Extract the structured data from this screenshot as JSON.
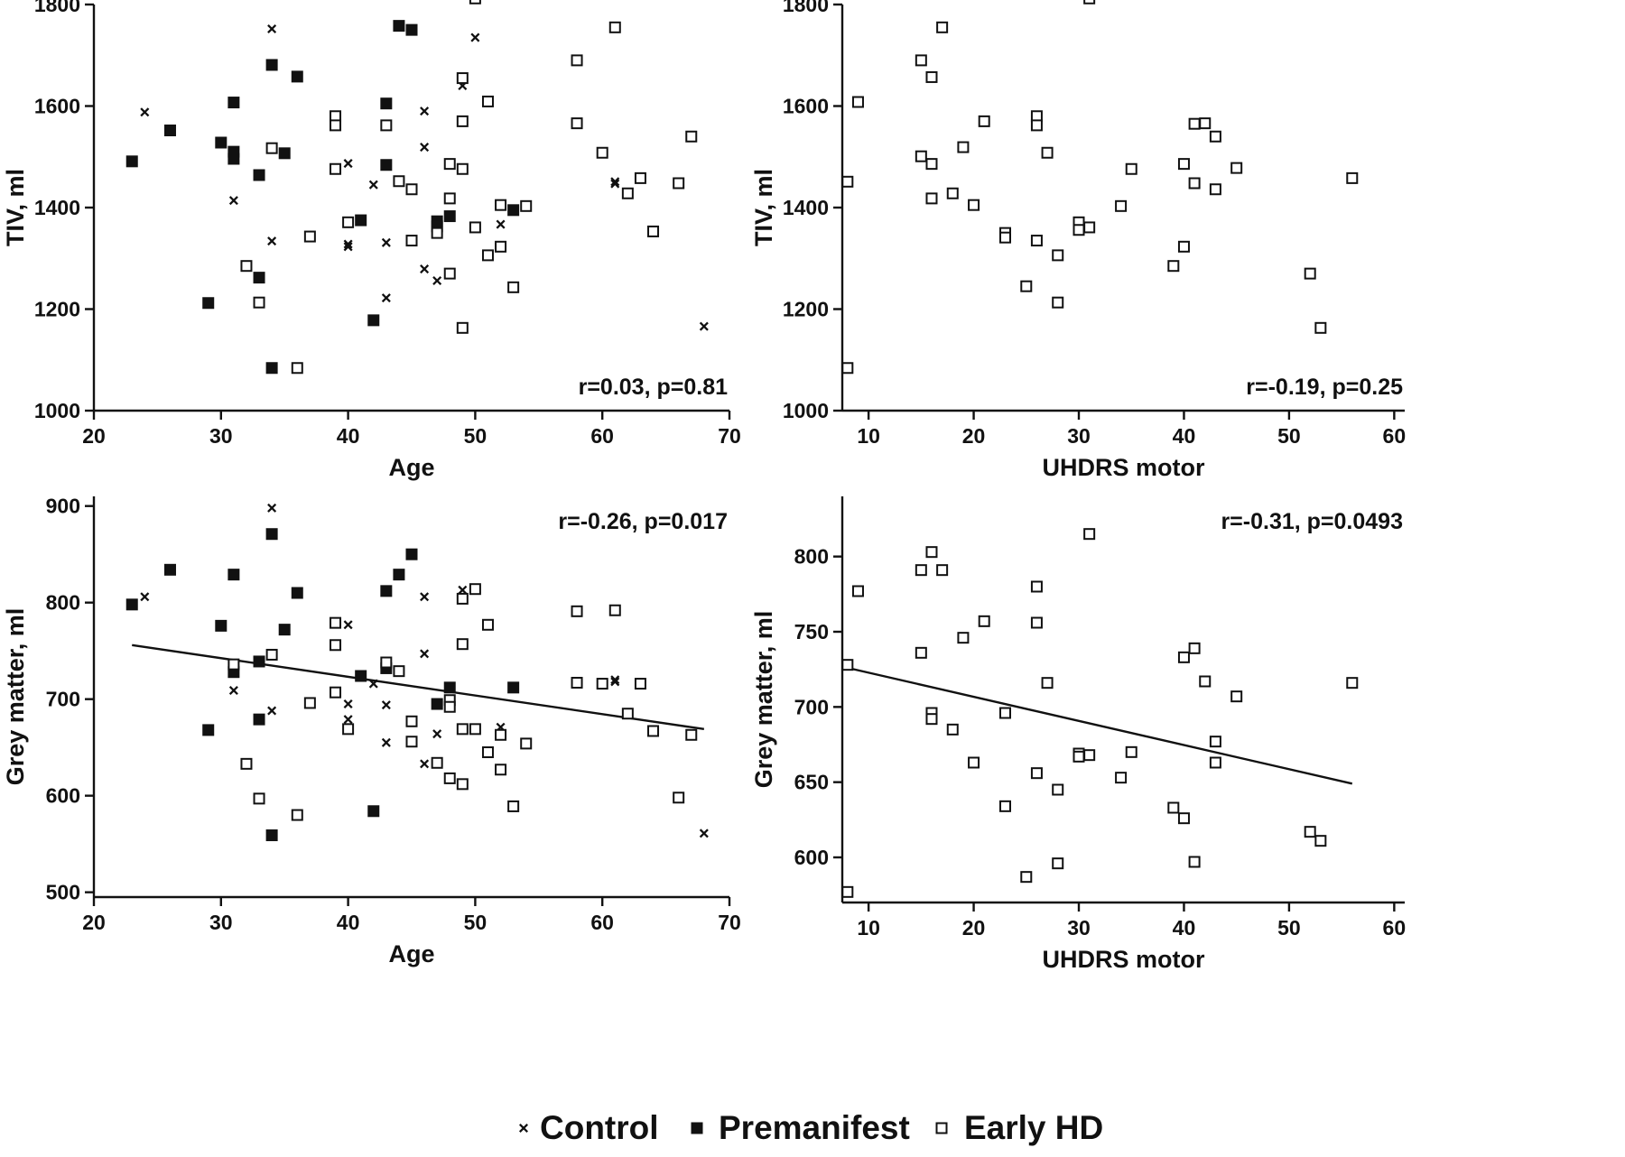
{
  "legend": {
    "position": "bottom-center",
    "items": [
      {
        "label": "Control",
        "marker": "x"
      },
      {
        "label": "Premanifest",
        "marker": "filled-square"
      },
      {
        "label": "Early HD",
        "marker": "open-square"
      }
    ]
  },
  "chart_data": [
    {
      "type": "scatter",
      "xlabel": "Age",
      "ylabel": "TIV, ml",
      "xlim": [
        20,
        70
      ],
      "ylim": [
        1000,
        1800
      ],
      "xticks": [
        20,
        30,
        40,
        50,
        60,
        70
      ],
      "yticks": [
        1000,
        1200,
        1400,
        1600,
        1800
      ],
      "annotation": "r=0.03, p=0.81",
      "annotation_position": "bottom-right",
      "regression_line": null,
      "series": [
        {
          "name": "Control",
          "marker": "x",
          "points": [
            [
              24,
              1588
            ],
            [
              31,
              1414
            ],
            [
              34,
              1752
            ],
            [
              34,
              1334
            ],
            [
              40,
              1487
            ],
            [
              40,
              1328
            ],
            [
              40,
              1323
            ],
            [
              42,
              1445
            ],
            [
              43,
              1331
            ],
            [
              43,
              1222
            ],
            [
              46,
              1590
            ],
            [
              46,
              1519
            ],
            [
              46,
              1279
            ],
            [
              47,
              1256
            ],
            [
              49,
              1640
            ],
            [
              50,
              1735
            ],
            [
              52,
              1367
            ],
            [
              61,
              1451
            ],
            [
              61,
              1447
            ],
            [
              68,
              1166
            ]
          ]
        },
        {
          "name": "Premanifest",
          "marker": "filled-square",
          "points": [
            [
              23,
              1491
            ],
            [
              26,
              1552
            ],
            [
              29,
              1212
            ],
            [
              30,
              1528
            ],
            [
              31,
              1607
            ],
            [
              31,
              1510
            ],
            [
              31,
              1496
            ],
            [
              33,
              1464
            ],
            [
              33,
              1262
            ],
            [
              34,
              1681
            ],
            [
              34,
              1084
            ],
            [
              35,
              1507
            ],
            [
              36,
              1658
            ],
            [
              41,
              1375
            ],
            [
              42,
              1178
            ],
            [
              43,
              1605
            ],
            [
              43,
              1484
            ],
            [
              44,
              1758
            ],
            [
              45,
              1750
            ],
            [
              47,
              1373
            ],
            [
              47,
              1363
            ],
            [
              48,
              1383
            ],
            [
              53,
              1395
            ]
          ]
        },
        {
          "name": "Early HD",
          "marker": "open-square",
          "points": [
            [
              32,
              1285
            ],
            [
              33,
              1213
            ],
            [
              34,
              1517
            ],
            [
              36,
              1084
            ],
            [
              37,
              1343
            ],
            [
              39,
              1580
            ],
            [
              39,
              1562
            ],
            [
              39,
              1476
            ],
            [
              40,
              1371
            ],
            [
              43,
              1562
            ],
            [
              44,
              1452
            ],
            [
              45,
              1436
            ],
            [
              45,
              1335
            ],
            [
              47,
              1350
            ],
            [
              48,
              1486
            ],
            [
              48,
              1418
            ],
            [
              48,
              1270
            ],
            [
              49,
              1655
            ],
            [
              49,
              1570
            ],
            [
              49,
              1476
            ],
            [
              49,
              1163
            ],
            [
              50,
              1812
            ],
            [
              50,
              1361
            ],
            [
              51,
              1609
            ],
            [
              51,
              1306
            ],
            [
              52,
              1405
            ],
            [
              52,
              1323
            ],
            [
              53,
              1243
            ],
            [
              54,
              1403
            ],
            [
              58,
              1690
            ],
            [
              58,
              1566
            ],
            [
              60,
              1508
            ],
            [
              61,
              1755
            ],
            [
              62,
              1428
            ],
            [
              63,
              1458
            ],
            [
              64,
              1353
            ],
            [
              66,
              1448
            ],
            [
              67,
              1540
            ]
          ]
        }
      ]
    },
    {
      "type": "scatter",
      "xlabel": "UHDRS motor",
      "ylabel": "TIV, ml",
      "xlim": [
        7.5,
        61
      ],
      "ylim": [
        1000,
        1800
      ],
      "xticks": [
        10,
        20,
        30,
        40,
        50,
        60
      ],
      "yticks": [
        1000,
        1200,
        1400,
        1600,
        1800
      ],
      "annotation": "r=-0.19, p=0.25",
      "annotation_position": "bottom-right",
      "regression_line": null,
      "series": [
        {
          "name": "Early HD",
          "marker": "open-square",
          "points": [
            [
              8,
              1451
            ],
            [
              8,
              1084
            ],
            [
              9,
              1608
            ],
            [
              15,
              1690
            ],
            [
              15,
              1501
            ],
            [
              16,
              1657
            ],
            [
              16,
              1486
            ],
            [
              16,
              1418
            ],
            [
              17,
              1755
            ],
            [
              18,
              1428
            ],
            [
              19,
              1519
            ],
            [
              20,
              1405
            ],
            [
              21,
              1570
            ],
            [
              23,
              1350
            ],
            [
              23,
              1341
            ],
            [
              25,
              1245
            ],
            [
              26,
              1580
            ],
            [
              26,
              1562
            ],
            [
              26,
              1335
            ],
            [
              27,
              1508
            ],
            [
              28,
              1306
            ],
            [
              28,
              1213
            ],
            [
              30,
              1371
            ],
            [
              30,
              1356
            ],
            [
              31,
              1812
            ],
            [
              31,
              1361
            ],
            [
              34,
              1403
            ],
            [
              35,
              1476
            ],
            [
              39,
              1285
            ],
            [
              40,
              1486
            ],
            [
              40,
              1323
            ],
            [
              41,
              1565
            ],
            [
              41,
              1448
            ],
            [
              42,
              1566
            ],
            [
              43,
              1540
            ],
            [
              43,
              1436
            ],
            [
              45,
              1478
            ],
            [
              52,
              1270
            ],
            [
              53,
              1163
            ],
            [
              56,
              1458
            ]
          ]
        }
      ]
    },
    {
      "type": "scatter",
      "xlabel": "Age",
      "ylabel": "Grey matter, ml",
      "xlim": [
        20,
        70
      ],
      "ylim": [
        495,
        910
      ],
      "xticks": [
        20,
        30,
        40,
        50,
        60,
        70
      ],
      "yticks": [
        500,
        600,
        700,
        800,
        900
      ],
      "annotation": "r=-0.26, p=0.017",
      "annotation_position": "top-right",
      "regression_line": {
        "x": [
          23,
          68
        ],
        "y": [
          756,
          669
        ]
      },
      "series": [
        {
          "name": "Control",
          "marker": "x",
          "points": [
            [
              24,
              806
            ],
            [
              31,
              709
            ],
            [
              34,
              898
            ],
            [
              34,
              688
            ],
            [
              40,
              777
            ],
            [
              40,
              695
            ],
            [
              40,
              679
            ],
            [
              42,
              716
            ],
            [
              43,
              694
            ],
            [
              43,
              655
            ],
            [
              46,
              806
            ],
            [
              46,
              747
            ],
            [
              46,
              633
            ],
            [
              47,
              664
            ],
            [
              49,
              813
            ],
            [
              50,
              815
            ],
            [
              52,
              671
            ],
            [
              61,
              720
            ],
            [
              61,
              718
            ],
            [
              68,
              561
            ]
          ]
        },
        {
          "name": "Premanifest",
          "marker": "filled-square",
          "points": [
            [
              23,
              798
            ],
            [
              26,
              834
            ],
            [
              29,
              668
            ],
            [
              30,
              776
            ],
            [
              31,
              829
            ],
            [
              31,
              728
            ],
            [
              33,
              739
            ],
            [
              33,
              679
            ],
            [
              34,
              871
            ],
            [
              34,
              559
            ],
            [
              35,
              772
            ],
            [
              36,
              810
            ],
            [
              41,
              724
            ],
            [
              42,
              584
            ],
            [
              43,
              812
            ],
            [
              43,
              732
            ],
            [
              44,
              829
            ],
            [
              45,
              850
            ],
            [
              47,
              695
            ],
            [
              48,
              712
            ],
            [
              53,
              712
            ]
          ]
        },
        {
          "name": "Early HD",
          "marker": "open-square",
          "points": [
            [
              31,
              736
            ],
            [
              32,
              633
            ],
            [
              33,
              597
            ],
            [
              34,
              746
            ],
            [
              36,
              580
            ],
            [
              37,
              696
            ],
            [
              39,
              779
            ],
            [
              39,
              756
            ],
            [
              39,
              707
            ],
            [
              40,
              669
            ],
            [
              43,
              738
            ],
            [
              44,
              729
            ],
            [
              45,
              677
            ],
            [
              45,
              656
            ],
            [
              47,
              634
            ],
            [
              48,
              699
            ],
            [
              48,
              692
            ],
            [
              48,
              618
            ],
            [
              49,
              804
            ],
            [
              49,
              757
            ],
            [
              49,
              669
            ],
            [
              49,
              612
            ],
            [
              50,
              814
            ],
            [
              50,
              669
            ],
            [
              51,
              777
            ],
            [
              51,
              645
            ],
            [
              52,
              663
            ],
            [
              52,
              627
            ],
            [
              53,
              589
            ],
            [
              54,
              654
            ],
            [
              58,
              791
            ],
            [
              58,
              717
            ],
            [
              60,
              716
            ],
            [
              61,
              792
            ],
            [
              62,
              685
            ],
            [
              63,
              716
            ],
            [
              64,
              667
            ],
            [
              66,
              598
            ],
            [
              67,
              663
            ]
          ]
        }
      ]
    },
    {
      "type": "scatter",
      "xlabel": "UHDRS motor",
      "ylabel": "Grey matter, ml",
      "xlim": [
        7.5,
        61
      ],
      "ylim": [
        570,
        840
      ],
      "xticks": [
        10,
        20,
        30,
        40,
        50,
        60
      ],
      "yticks": [
        600,
        650,
        700,
        750,
        800
      ],
      "annotation": "r=-0.31, p=0.0493",
      "annotation_position": "top-right",
      "regression_line": {
        "x": [
          8,
          56
        ],
        "y": [
          726,
          649
        ]
      },
      "series": [
        {
          "name": "Early HD",
          "marker": "open-square",
          "points": [
            [
              8,
              728
            ],
            [
              8,
              577
            ],
            [
              9,
              777
            ],
            [
              15,
              791
            ],
            [
              15,
              736
            ],
            [
              16,
              803
            ],
            [
              16,
              696
            ],
            [
              16,
              692
            ],
            [
              17,
              791
            ],
            [
              18,
              685
            ],
            [
              19,
              746
            ],
            [
              20,
              663
            ],
            [
              21,
              757
            ],
            [
              23,
              696
            ],
            [
              23,
              634
            ],
            [
              25,
              587
            ],
            [
              26,
              780
            ],
            [
              26,
              756
            ],
            [
              26,
              656
            ],
            [
              27,
              716
            ],
            [
              28,
              645
            ],
            [
              28,
              596
            ],
            [
              30,
              669
            ],
            [
              30,
              667
            ],
            [
              31,
              815
            ],
            [
              31,
              668
            ],
            [
              34,
              653
            ],
            [
              35,
              670
            ],
            [
              39,
              633
            ],
            [
              40,
              733
            ],
            [
              40,
              626
            ],
            [
              41,
              739
            ],
            [
              41,
              597
            ],
            [
              42,
              717
            ],
            [
              43,
              677
            ],
            [
              43,
              663
            ],
            [
              45,
              707
            ],
            [
              52,
              617
            ],
            [
              53,
              611
            ],
            [
              56,
              716
            ]
          ]
        }
      ]
    }
  ]
}
